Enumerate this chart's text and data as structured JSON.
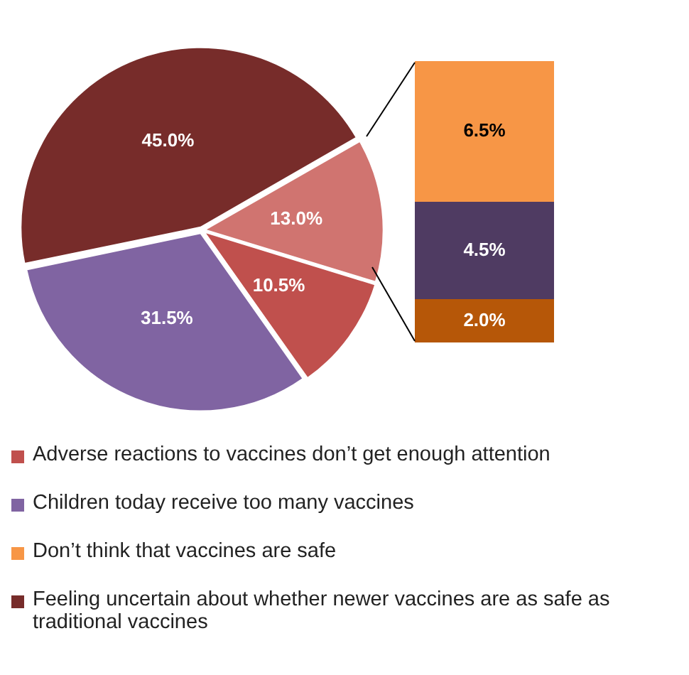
{
  "chart_data": [
    {
      "type": "pie",
      "categories": [
        "Adverse reactions to vaccines don’t get enough attention",
        "Children today receive too many vaccines",
        "Feeling uncertain about whether newer vaccines are as safe as traditional vaccines",
        null
      ],
      "values": [
        10.5,
        31.5,
        45.0,
        13.0
      ],
      "colors": [
        "#c0504d",
        "#8064a2",
        "#772c2a",
        "#d07470"
      ],
      "value_labels": [
        "10.5%",
        "31.5%",
        "45.0%",
        "13.0%"
      ],
      "legend": "bottom"
    },
    {
      "type": "bar",
      "stacked": true,
      "categories": [
        null
      ],
      "tick_labels": false,
      "legend": "bottom",
      "series": [
        {
          "values": [
            2.0
          ],
          "color": "#b65708",
          "value_labels": [
            "2.0%"
          ]
        },
        {
          "values": [
            4.5
          ],
          "color": "#4f3b62",
          "value_labels": [
            "4.5%"
          ]
        },
        {
          "name": "Don’t think that vaccines are safe",
          "values": [
            6.5
          ],
          "color": "#f79646",
          "value_labels": [
            "6.5%"
          ]
        }
      ]
    }
  ]
}
